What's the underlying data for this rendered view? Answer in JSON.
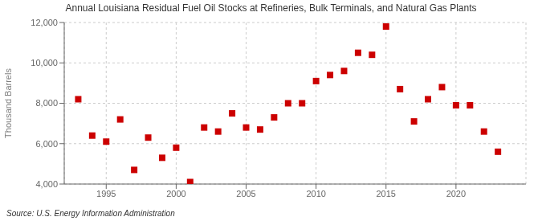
{
  "chart_data": {
    "type": "scatter",
    "title": "Annual Louisiana Residual Fuel Oil Stocks at Refineries, Bulk Terminals, and Natural Gas Plants",
    "ylabel": "Thousand Barrels",
    "annotations": [
      "Source: U.S. Energy Information Administration"
    ],
    "x": [
      1993,
      1994,
      1995,
      1996,
      1997,
      1998,
      1999,
      2000,
      2001,
      2002,
      2003,
      2004,
      2005,
      2006,
      2007,
      2008,
      2009,
      2010,
      2011,
      2012,
      2013,
      2014,
      2015,
      2016,
      2017,
      2018,
      2019,
      2020,
      2021,
      2022,
      2023
    ],
    "values": [
      8200,
      6400,
      6100,
      7200,
      4700,
      6300,
      5300,
      5800,
      4100,
      6800,
      6600,
      7500,
      6800,
      6700,
      7300,
      8000,
      8000,
      9100,
      9400,
      9600,
      10500,
      10400,
      11800,
      8700,
      7100,
      8200,
      8800,
      7900,
      7900,
      6600,
      5600
    ],
    "color": "#cc0000",
    "marker": "square",
    "xlim": [
      1992,
      2025
    ],
    "ylim": [
      4000,
      12000
    ],
    "xticks": [
      1995,
      2000,
      2005,
      2010,
      2015,
      2020
    ],
    "yticks": [
      {
        "value": 4000,
        "label": "4,000"
      },
      {
        "value": 6000,
        "label": "6,000"
      },
      {
        "value": 8000,
        "label": "8,000"
      },
      {
        "value": 10000,
        "label": "10,000"
      },
      {
        "value": 12000,
        "label": "12,000"
      }
    ],
    "grid": true
  }
}
